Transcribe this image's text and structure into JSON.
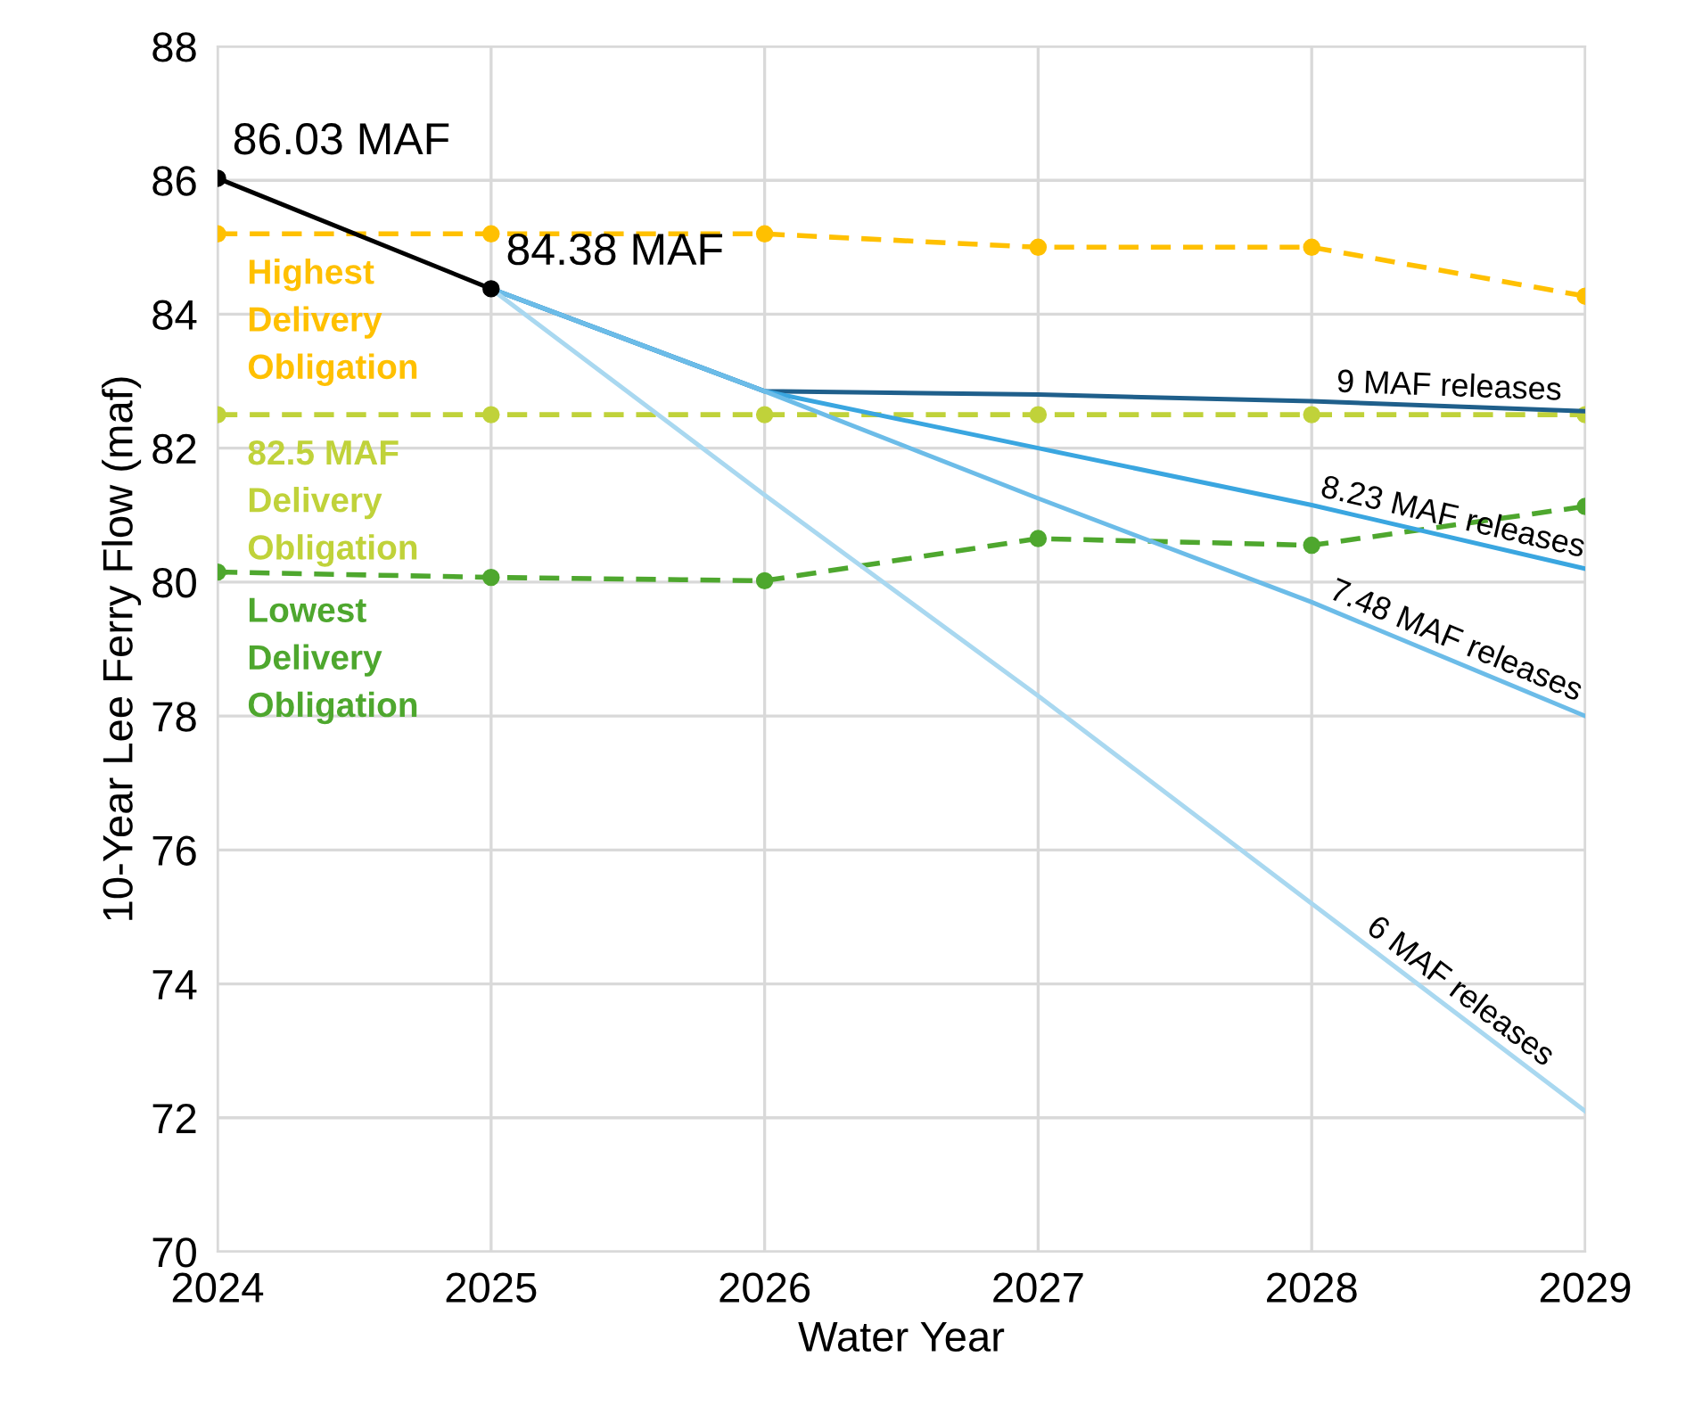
{
  "chart_data": {
    "type": "line",
    "xlabel": "Water Year",
    "ylabel": "10-Year Lee Ferry Flow (maf)",
    "x": [
      2024,
      2025,
      2026,
      2027,
      2028,
      2029
    ],
    "xlim": [
      2024,
      2029
    ],
    "xticks": [
      2024,
      2025,
      2026,
      2027,
      2028,
      2029
    ],
    "ylim": [
      70,
      88
    ],
    "yticks": [
      70,
      72,
      74,
      76,
      78,
      80,
      82,
      84,
      86,
      88
    ],
    "grid": true,
    "legend": false,
    "series": [
      {
        "name": "Highest\nDelivery\nObligation",
        "color": "#ffc000",
        "line_style": "dashed",
        "marker": "circle",
        "values": [
          85.2,
          85.2,
          85.2,
          85.0,
          85.0,
          84.27
        ]
      },
      {
        "name": "82.5 MAF\nDelivery\nObligation",
        "color": "#c0d23a",
        "line_style": "dashed",
        "marker": "circle",
        "values": [
          82.5,
          82.5,
          82.5,
          82.5,
          82.5,
          82.5
        ]
      },
      {
        "name": "Lowest\nDelivery\nObligation",
        "color": "#4ea72e",
        "line_style": "dashed",
        "marker": "circle",
        "values": [
          80.15,
          80.07,
          80.02,
          80.65,
          80.55,
          81.13
        ]
      },
      {
        "name": "9 MAF releases",
        "color": "#1f5f8b",
        "line_style": "solid",
        "marker": "none",
        "values": [
          null,
          84.38,
          82.85,
          82.8,
          82.7,
          82.55
        ]
      },
      {
        "name": "8.23 MAF releases",
        "color": "#3aa6e0",
        "line_style": "solid",
        "marker": "none",
        "values": [
          null,
          84.38,
          82.85,
          82.0,
          81.15,
          80.2
        ]
      },
      {
        "name": "7.48 MAF releases",
        "color": "#6cbce8",
        "line_style": "solid",
        "marker": "none",
        "values": [
          null,
          84.38,
          82.85,
          81.25,
          79.7,
          78.0
        ]
      },
      {
        "name": "6 MAF releases",
        "color": "#a9d8f0",
        "line_style": "solid",
        "marker": "none",
        "values": [
          null,
          84.38,
          81.3,
          78.3,
          75.2,
          72.1
        ]
      },
      {
        "color": "#000000",
        "line_style": "solid",
        "marker": "circle",
        "values": [
          86.03,
          84.38,
          null,
          null,
          null,
          null
        ],
        "value_labels": [
          "86.03 MAF",
          "84.38 MAF",
          null,
          null,
          null,
          null
        ]
      }
    ]
  }
}
